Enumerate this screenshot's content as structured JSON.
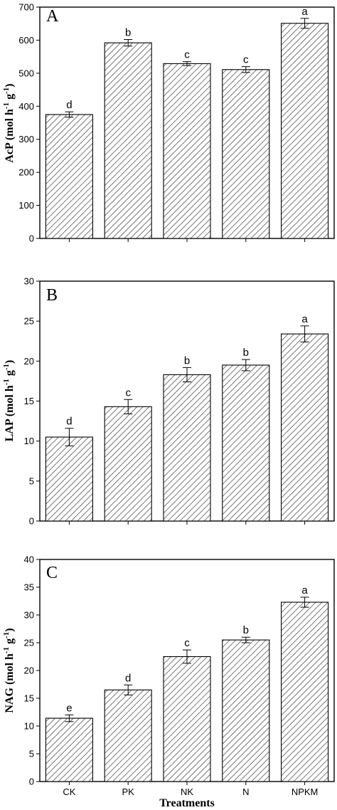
{
  "chart_data": [
    {
      "type": "bar",
      "panel": "A",
      "categories": [
        "CK",
        "PK",
        "NK",
        "N",
        "NPKM"
      ],
      "values": [
        375,
        592,
        529,
        511,
        651
      ],
      "errors": [
        8,
        10,
        6,
        9,
        15
      ],
      "letters": [
        "d",
        "b",
        "c",
        "c",
        "a"
      ],
      "ylabel": "AcP (mol h-1 g-1)",
      "ylim": [
        0,
        700
      ],
      "yticks": [
        0,
        100,
        200,
        300,
        400,
        500,
        600,
        700
      ],
      "pattern": "diagonal-hatch"
    },
    {
      "type": "bar",
      "panel": "B",
      "categories": [
        "CK",
        "PK",
        "NK",
        "N",
        "NPKM"
      ],
      "values": [
        10.5,
        14.3,
        18.3,
        19.5,
        23.4
      ],
      "errors": [
        1.1,
        0.9,
        0.9,
        0.7,
        1.0
      ],
      "letters": [
        "d",
        "c",
        "b",
        "b",
        "a"
      ],
      "ylabel": "LAP (mol h-1 g-1)",
      "ylim": [
        0,
        30
      ],
      "yticks": [
        0,
        5,
        10,
        15,
        20,
        25,
        30
      ],
      "pattern": "diagonal-hatch"
    },
    {
      "type": "bar",
      "panel": "C",
      "categories": [
        "CK",
        "PK",
        "NK",
        "N",
        "NPKM"
      ],
      "values": [
        11.4,
        16.5,
        22.5,
        25.5,
        32.3
      ],
      "errors": [
        0.6,
        0.9,
        1.2,
        0.5,
        0.9
      ],
      "letters": [
        "e",
        "d",
        "c",
        "b",
        "a"
      ],
      "ylabel": "NAG (mol h-1 g-1)",
      "ylim": [
        0,
        40
      ],
      "yticks": [
        0,
        5,
        10,
        15,
        20,
        25,
        30,
        35,
        40
      ],
      "xlabel": "Treatments",
      "pattern": "diagonal-hatch"
    }
  ],
  "labels": {
    "panel_a": "A",
    "panel_b": "B",
    "panel_c": "C",
    "y_a_main": "AcP (mol h",
    "y_b_main": "LAP (mol h",
    "y_c_main": "NAG (mol h",
    "y_exp": "-1",
    "y_g": " g",
    "y_close": ")",
    "x_title": "Treatments"
  }
}
